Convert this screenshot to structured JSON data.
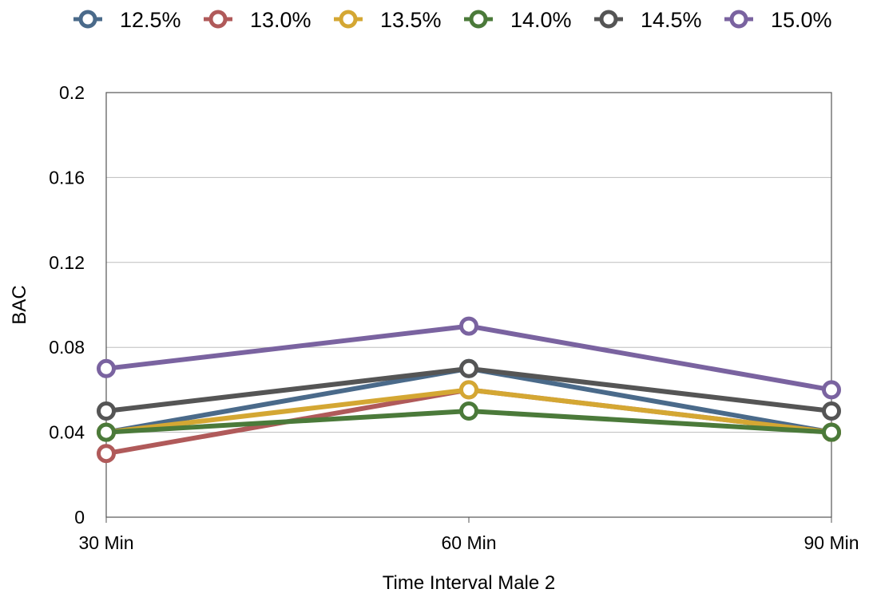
{
  "chart_data": {
    "type": "line",
    "title": "",
    "xlabel": "Time Interval Male 2",
    "ylabel": "BAC",
    "categories": [
      "30 Min",
      "60 Min",
      "90 Min"
    ],
    "ylim": [
      0,
      0.2
    ],
    "yticks": [
      "0",
      "0.04",
      "0.08",
      "0.12",
      "0.16",
      "0.2"
    ],
    "grid": true,
    "legend_position": "top",
    "series": [
      {
        "name": "12.5%",
        "color": "#4a6a8a",
        "values": [
          0.04,
          0.07,
          0.04
        ]
      },
      {
        "name": "13.0%",
        "color": "#b05a5a",
        "values": [
          0.03,
          0.06,
          0.04
        ]
      },
      {
        "name": "13.5%",
        "color": "#d4a733",
        "values": [
          0.04,
          0.06,
          0.04
        ]
      },
      {
        "name": "14.0%",
        "color": "#4b7a3a",
        "values": [
          0.04,
          0.05,
          0.04
        ]
      },
      {
        "name": "14.5%",
        "color": "#555555",
        "values": [
          0.05,
          0.07,
          0.05
        ]
      },
      {
        "name": "15.0%",
        "color": "#7a63a0",
        "values": [
          0.07,
          0.09,
          0.06
        ]
      }
    ]
  }
}
